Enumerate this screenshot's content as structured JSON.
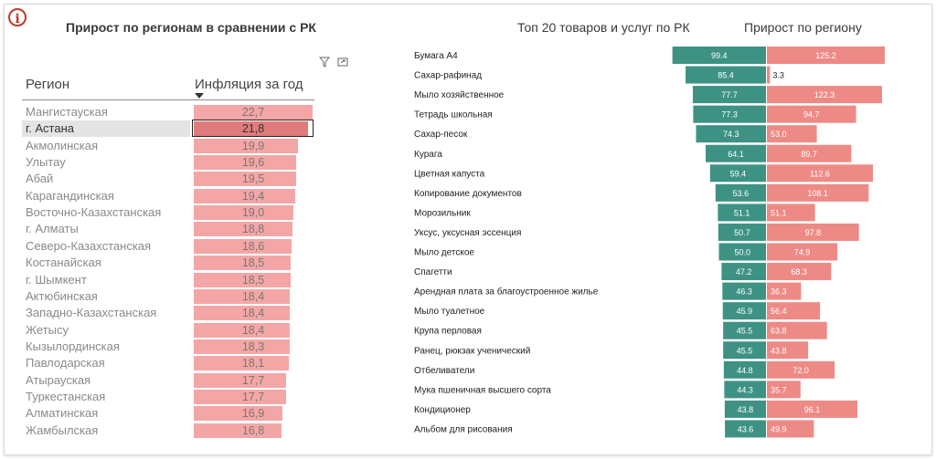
{
  "left_panel": {
    "title": "Прирост по регионам в сравнении с РК",
    "col_region": "Регион",
    "col_inflation": "Инфляция за год",
    "selected_region": "г. Астана"
  },
  "right_panel": {
    "title_left": "Топ 20 товаров и услуг по РК",
    "title_right": "Прирост по региону"
  },
  "colors": {
    "teal": "#3e9284",
    "salmon": "#ee8a86",
    "pink_bar": "#f4a6a6",
    "selected_bar": "#e07b7b",
    "info": "#c0392b"
  },
  "chart_data": [
    {
      "type": "bar",
      "categories": [
        "Мангистауская",
        "г. Астана",
        "Акмолинская",
        "Улытау",
        "Абай",
        "Карагандинская",
        "Восточно-Казахстанская",
        "г. Алматы",
        "Северо-Казахстанская",
        "Костанайская",
        "г. Шымкент",
        "Актюбинская",
        "Западно-Казахстанская",
        "Жетысу",
        "Кызылординская",
        "Павлодарская",
        "Атырауская",
        "Туркестанская",
        "Алматинская",
        "Жамбылская"
      ],
      "values": [
        22.7,
        21.8,
        19.9,
        19.6,
        19.5,
        19.4,
        19.0,
        18.8,
        18.6,
        18.5,
        18.5,
        18.4,
        18.4,
        18.4,
        18.3,
        18.1,
        17.7,
        17.7,
        16.9,
        16.8
      ],
      "value_labels": [
        "22,7",
        "21,8",
        "19,9",
        "19,6",
        "19,5",
        "19,4",
        "19,0",
        "18,8",
        "18,6",
        "18,5",
        "18,5",
        "18,4",
        "18,4",
        "18,4",
        "18,3",
        "18,1",
        "17,7",
        "17,7",
        "16,9",
        "16,8"
      ],
      "xlabel": "Регион",
      "ylabel": "Инфляция за год"
    },
    {
      "type": "bar",
      "categories": [
        "Бумага А4",
        "Сахар-рафинад",
        "Мыло хозяйственное",
        "Тетрадь школьная",
        "Сахар-песок",
        "Курага",
        "Цветная капуста",
        "Копирование документов",
        "Морозильник",
        "Уксус, уксусная эссенция",
        "Мыло детское",
        "Спагетти",
        "Арендная плата за благоустроенное жилье",
        "Мыло туалетное",
        "Крупа перловая",
        "Ранец, рюкзак ученический",
        "Отбеливатели",
        "Мука пшеничная высшего сорта",
        "Кондиционер",
        "Альбом для рисования"
      ],
      "series": [
        {
          "name": "Топ 20 товаров и услуг по РК",
          "values": [
            99.4,
            85.4,
            77.7,
            77.3,
            74.3,
            64.1,
            59.4,
            53.6,
            51.1,
            50.7,
            50.0,
            47.2,
            46.3,
            45.9,
            45.5,
            45.5,
            44.8,
            44.3,
            43.8,
            43.6
          ]
        },
        {
          "name": "Прирост по региону",
          "values": [
            125.2,
            3.3,
            122.3,
            94.7,
            53.0,
            89.7,
            112.6,
            108.1,
            51.1,
            97.8,
            74.9,
            68.3,
            36.3,
            56.4,
            63.8,
            43.8,
            72.0,
            35.7,
            96.1,
            49.9
          ]
        }
      ]
    }
  ]
}
